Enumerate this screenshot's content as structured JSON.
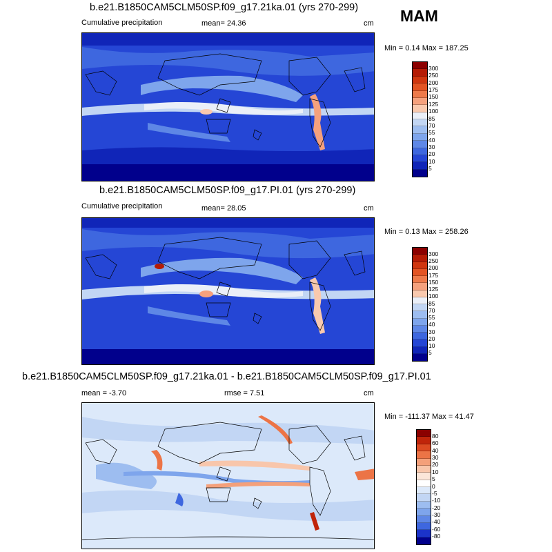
{
  "season": "MAM",
  "colors": {
    "precip_levels": [
      "#8b0000",
      "#b51b05",
      "#d0360f",
      "#e35423",
      "#ee7a4a",
      "#f5a17d",
      "#f9c9ae",
      "#eaeff8",
      "#c2d6f4",
      "#9dbdf0",
      "#7ea5ec",
      "#5e87e6",
      "#3e67df",
      "#2546d5",
      "#1025b8",
      "#01008c"
    ],
    "diff_levels": [
      "#8b0000",
      "#c0240a",
      "#dc4a22",
      "#ec7446",
      "#f4a07a",
      "#f8c6ab",
      "#fbe6d9",
      "#ffffff",
      "#dce9fa",
      "#c2d6f4",
      "#9dbdf0",
      "#7ea5ec",
      "#5e87e6",
      "#3e67df",
      "#1b33c9",
      "#01008c"
    ]
  },
  "panels": [
    {
      "title": "b.e21.B1850CAM5CLM50SP.f09_g17.21ka.01 (yrs 270-299)",
      "left_label": "Cumulative precipitation",
      "mean_text": "mean=  24.36",
      "units": "cm",
      "minmax": "Min =   0.14 Max = 187.25",
      "colorbar_ticks": [
        "300",
        "250",
        "200",
        "175",
        "150",
        "125",
        "100",
        "85",
        "70",
        "55",
        "40",
        "30",
        "20",
        "10",
        "5"
      ]
    },
    {
      "title": "b.e21.B1850CAM5CLM50SP.f09_g17.PI.01 (yrs 270-299)",
      "left_label": "Cumulative precipitation",
      "mean_text": "mean=  28.05",
      "units": "cm",
      "minmax": "Min =   0.13 Max = 258.26",
      "colorbar_ticks": [
        "300",
        "250",
        "200",
        "175",
        "150",
        "125",
        "100",
        "85",
        "70",
        "55",
        "40",
        "30",
        "20",
        "10",
        "5"
      ]
    },
    {
      "title": "b.e21.B1850CAM5CLM50SP.f09_g17.21ka.01 - b.e21.B1850CAM5CLM50SP.f09_g17.PI.01",
      "mean_text": "mean =  -3.70",
      "rmse_text": "rmse =   7.51",
      "units": "cm",
      "minmax": "Min = -111.37 Max =  41.47",
      "colorbar_ticks": [
        "80",
        "60",
        "40",
        "30",
        "20",
        "10",
        "5",
        "0",
        "-5",
        "-10",
        "-20",
        "-30",
        "-40",
        "-60",
        "-80"
      ]
    }
  ],
  "chart_data": [
    {
      "type": "heatmap",
      "title": "b.e21.B1850CAM5CLM50SP.f09_g17.21ka.01 (yrs 270-299)",
      "subtitle": "Cumulative precipitation",
      "units": "cm",
      "mean": 24.36,
      "min": 0.14,
      "max": 187.25,
      "contour_levels": [
        5,
        10,
        20,
        30,
        40,
        55,
        70,
        85,
        100,
        125,
        150,
        175,
        200,
        250,
        300
      ],
      "projection": "global cylindrical equidistant, 180W-180E, 90S-90N"
    },
    {
      "type": "heatmap",
      "title": "b.e21.B1850CAM5CLM50SP.f09_g17.PI.01 (yrs 270-299)",
      "subtitle": "Cumulative precipitation",
      "units": "cm",
      "mean": 28.05,
      "min": 0.13,
      "max": 258.26,
      "contour_levels": [
        5,
        10,
        20,
        30,
        40,
        55,
        70,
        85,
        100,
        125,
        150,
        175,
        200,
        250,
        300
      ],
      "projection": "global cylindrical equidistant, 180W-180E, 90S-90N"
    },
    {
      "type": "heatmap",
      "title": "b.e21.B1850CAM5CLM50SP.f09_g17.21ka.01 - b.e21.B1850CAM5CLM50SP.f09_g17.PI.01",
      "units": "cm",
      "mean": -3.7,
      "rmse": 7.51,
      "min": -111.37,
      "max": 41.47,
      "contour_levels": [
        -80,
        -60,
        -40,
        -30,
        -20,
        -10,
        -5,
        0,
        5,
        10,
        20,
        30,
        40,
        60,
        80
      ],
      "projection": "global cylindrical equidistant, 180W-180E, 90S-90N"
    }
  ]
}
